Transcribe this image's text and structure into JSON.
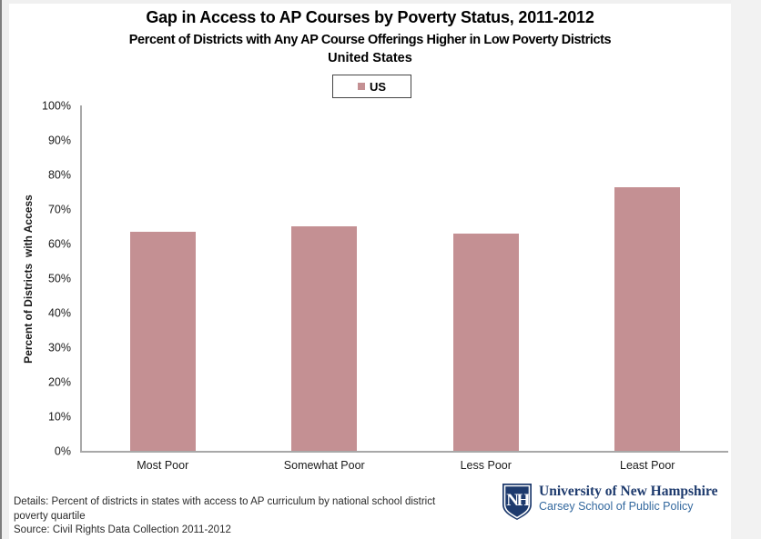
{
  "header": {
    "title": "Gap in Access to AP Courses by Poverty Status, 2011-2012",
    "subtitle": "Percent of Districts with Any AP Course Offerings Higher in Low Poverty Districts",
    "region": "United States"
  },
  "legend": {
    "label": "US"
  },
  "chart_data": {
    "type": "bar",
    "title": "Gap in Access to AP Courses by Poverty Status, 2011-2012",
    "subtitle": "Percent of Districts with Any AP Course Offerings Higher in Low Poverty Districts United States",
    "series_name": "US",
    "categories": [
      "Most Poor",
      "Somewhat Poor",
      "Less Poor",
      "Least Poor"
    ],
    "values": [
      63.5,
      65,
      63,
      76.4
    ],
    "ylabel": "Percent of Districts  with Access",
    "xlabel": "",
    "ylim": [
      0,
      100
    ],
    "ytick_step": 10,
    "ytick_labels": [
      "0%",
      "10%",
      "20%",
      "30%",
      "40%",
      "50%",
      "60%",
      "70%",
      "80%",
      "90%",
      "100%"
    ],
    "grid": false,
    "legend_position": "top-center",
    "bar_color": "#c49093",
    "axis_color": "#a8a8a8"
  },
  "footer": {
    "details_line1": "Details: Percent of districts in states with access to AP curriculum by national school district",
    "details_line2": "poverty quartile",
    "source": "Source: Civil Rights Data Collection 2011-2012"
  },
  "logo": {
    "shield_letters": "NH",
    "org_name": "University of New Hampshire",
    "org_school": "Carsey School of Public Policy",
    "navy": "#1d3a6d",
    "blue": "#33689e"
  }
}
